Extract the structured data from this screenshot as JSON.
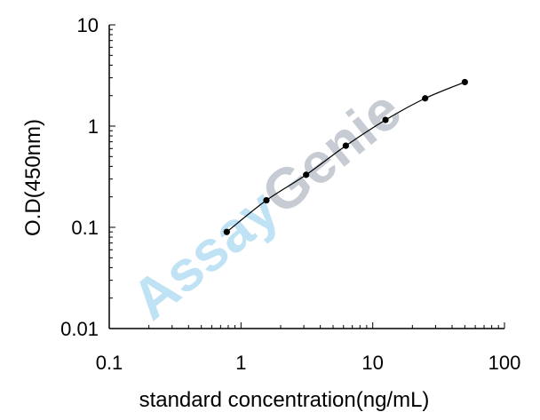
{
  "chart_data": {
    "type": "scatter",
    "title": "",
    "xlabel": "standard concentration(ng/mL)",
    "ylabel": "O.D(450nm)",
    "x_scale": "log",
    "y_scale": "log",
    "xlim": [
      0.1,
      100
    ],
    "ylim": [
      0.01,
      10
    ],
    "x_tick_labels": [
      "0.1",
      "1",
      "10",
      "100"
    ],
    "y_tick_labels": [
      "10",
      "1",
      "0.1",
      "0.01"
    ],
    "grid": false,
    "legend": "none",
    "series": [
      {
        "x": [
          0.78,
          1.56,
          3.12,
          6.25,
          12.5,
          25,
          50
        ],
        "y": [
          0.09,
          0.185,
          0.33,
          0.64,
          1.15,
          1.88,
          2.72
        ]
      }
    ],
    "trendline": "smooth fit through points",
    "watermark": {
      "text_part1": "Assay",
      "text_part2": "Genie"
    },
    "colors": {
      "axis": "#000000",
      "points": "#000000",
      "watermark_part1": "#bfe3f5",
      "watermark_part2": "#c7ccd4"
    }
  }
}
